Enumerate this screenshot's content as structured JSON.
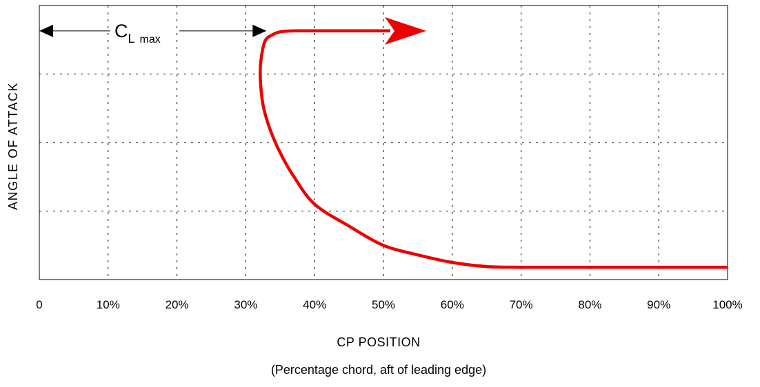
{
  "chart_data": {
    "type": "line",
    "title": "",
    "xlabel": "CP POSITION",
    "xlabel_note": "(Percentage chord, aft of leading edge)",
    "ylabel": "ANGLE OF ATTACK",
    "xlim": [
      0,
      100
    ],
    "ylim": [
      0,
      4
    ],
    "x_ticks": [
      0,
      10,
      20,
      30,
      40,
      50,
      60,
      70,
      80,
      90,
      100
    ],
    "x_tick_labels": [
      "0",
      "10%",
      "20%",
      "30%",
      "40%",
      "50%",
      "60%",
      "70%",
      "80%",
      "90%",
      "100%"
    ],
    "y_tick_labels": [],
    "grid": true,
    "legend": "none",
    "series": [
      {
        "color": "#ee0000",
        "x": [
          100,
          90,
          80,
          74,
          70,
          65,
          60,
          55,
          50,
          45,
          40,
          37,
          35,
          33.5,
          32.5,
          32.1,
          32.2,
          32.8,
          34,
          35.2,
          37,
          42,
          48,
          51
        ],
        "y": [
          0.18,
          0.18,
          0.18,
          0.18,
          0.18,
          0.19,
          0.25,
          0.36,
          0.5,
          0.78,
          1.1,
          1.5,
          1.85,
          2.2,
          2.55,
          2.95,
          3.2,
          3.48,
          3.58,
          3.62,
          3.63,
          3.63,
          3.63,
          3.63
        ],
        "arrow_end": true
      }
    ],
    "annotations": [
      {
        "type": "double-arrow",
        "x_start": 0,
        "x_end": 33,
        "y": 3.63,
        "label": "C",
        "label_sub": "L",
        "label_sub2": "max"
      }
    ]
  }
}
